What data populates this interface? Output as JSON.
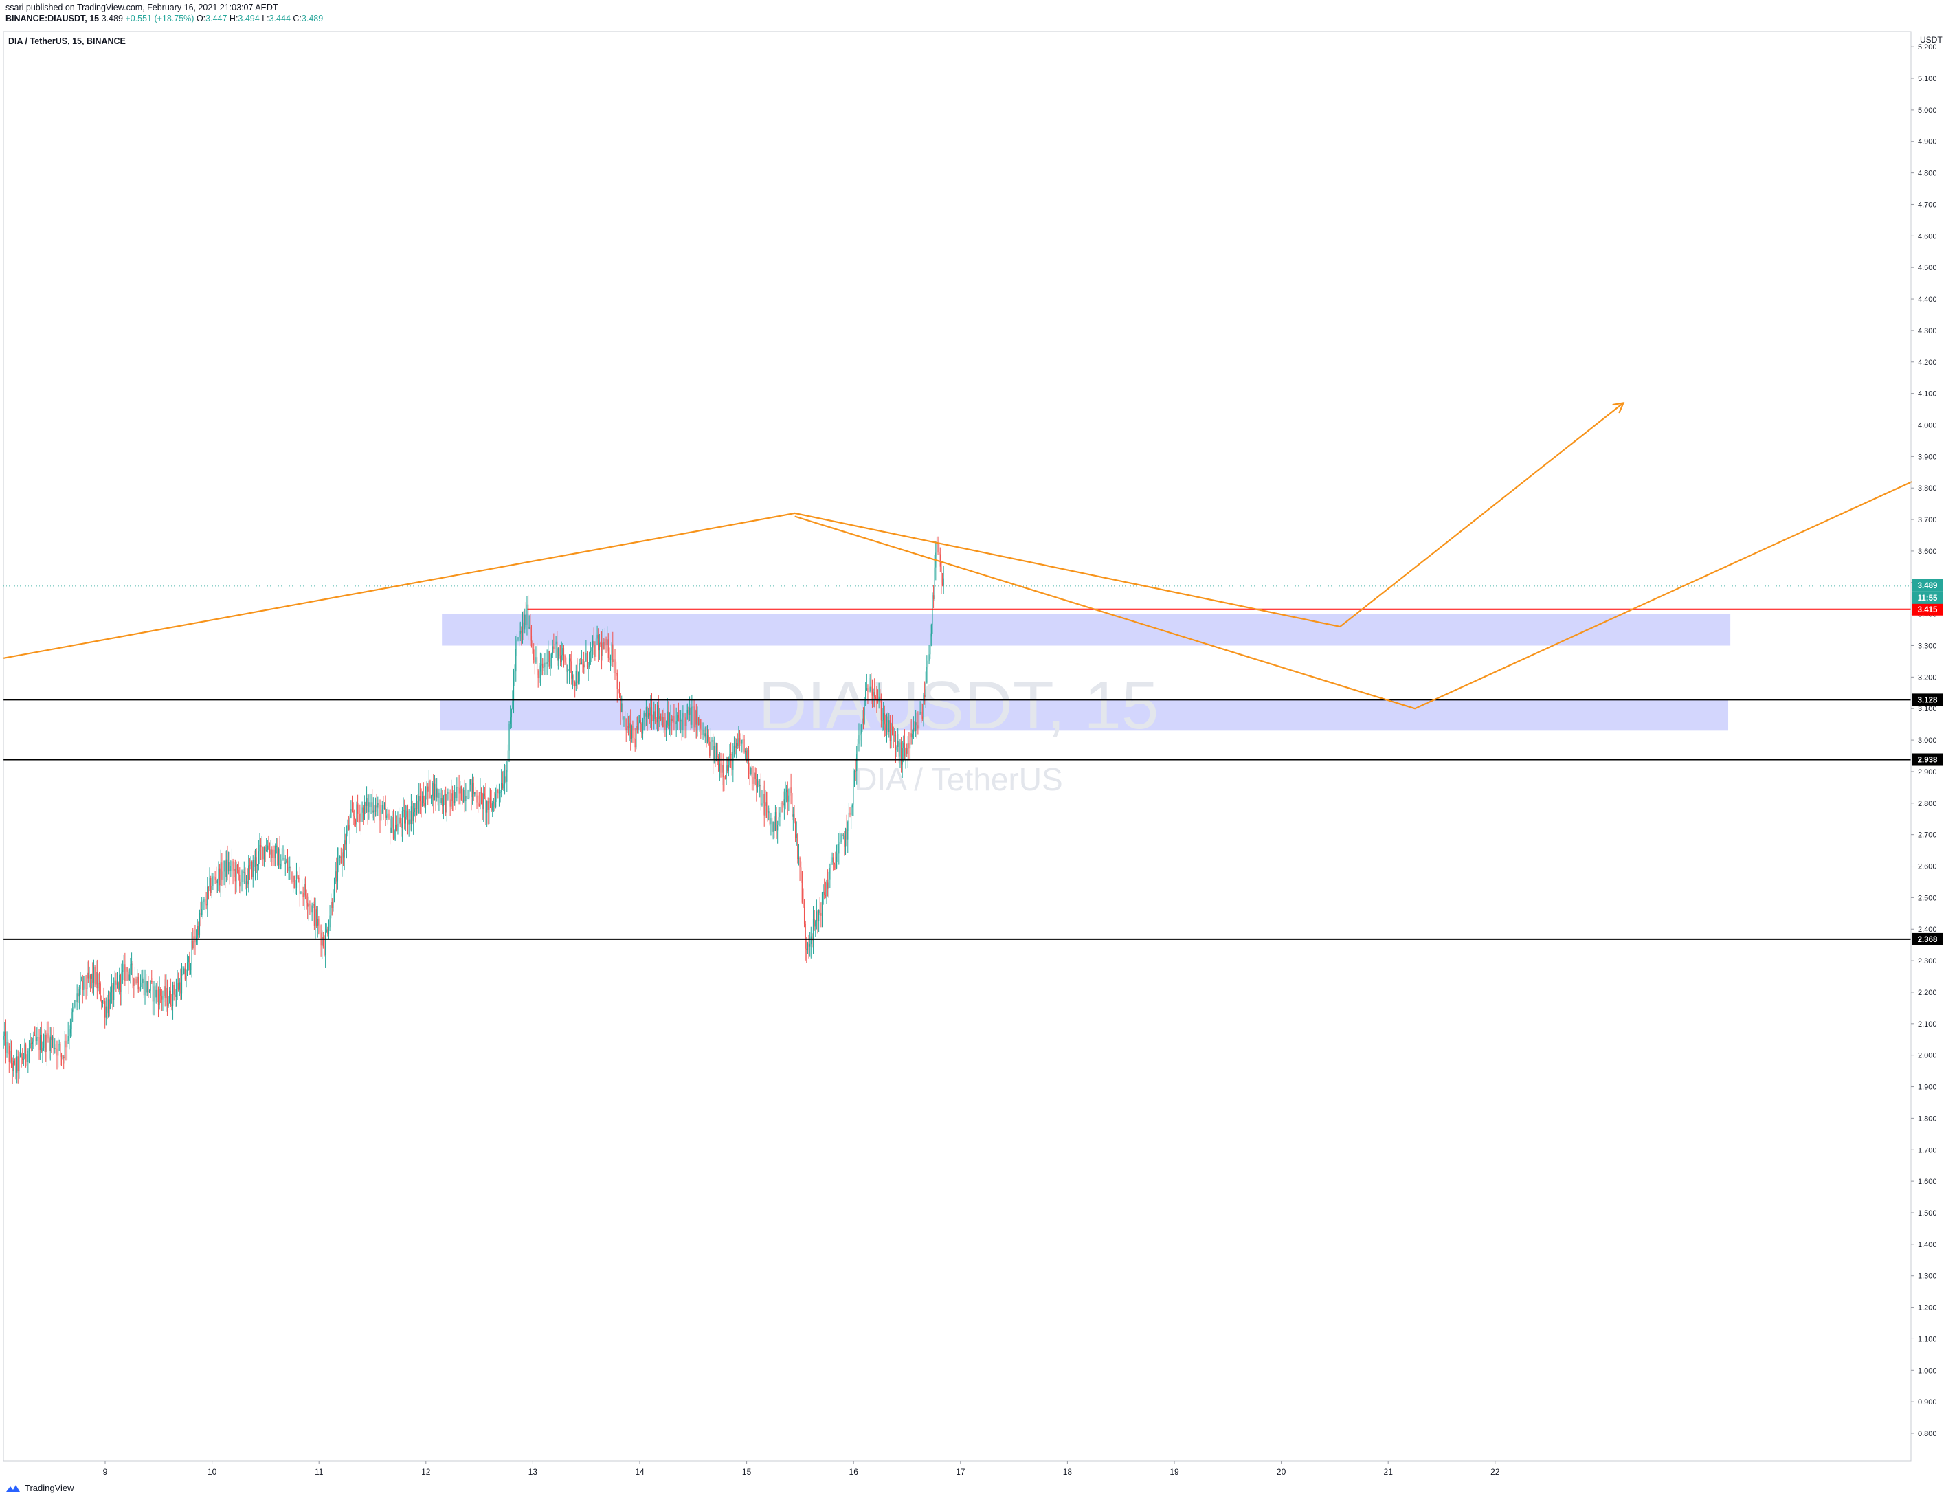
{
  "header": {
    "published": "ssari published on TradingView.com, February 16, 2021 21:03:07 AEDT",
    "symbol": "BINANCE:DIAUSDT, 15",
    "last": "3.489",
    "change": "+0.551 (+18.75%)",
    "o_label": "O:",
    "o_val": "3.447",
    "h_label": "H:",
    "h_val": "3.494",
    "l_label": "L:",
    "l_val": "3.444",
    "c_label": "C:",
    "c_val": "3.489"
  },
  "chart_title": "DIA / TetherUS, 15, BINANCE",
  "currency": "USDT",
  "watermark": {
    "big": "DIAUSDT, 15",
    "small": "DIA / TetherUS"
  },
  "footer": {
    "brand": "TradingView"
  },
  "colors": {
    "up": "#26a69a",
    "down": "#ef5350",
    "drawing": "#f7931a",
    "zone": "#d1d4fd",
    "support": "#000000",
    "resistance": "#ff0000"
  },
  "chart_data": {
    "type": "candlestick",
    "ylim": [
      0.75,
      5.2
    ],
    "y_ticks": [
      "0.800",
      "0.900",
      "1.000",
      "1.100",
      "1.200",
      "1.300",
      "1.400",
      "1.500",
      "1.600",
      "1.700",
      "1.800",
      "1.900",
      "2.000",
      "2.100",
      "2.200",
      "2.300",
      "2.400",
      "2.500",
      "2.600",
      "2.700",
      "2.800",
      "2.900",
      "3.000",
      "3.100",
      "3.200",
      "3.300",
      "3.400",
      "3.500",
      "3.600",
      "3.700",
      "3.800",
      "3.900",
      "4.000",
      "4.100",
      "4.200",
      "4.300",
      "4.400",
      "4.500",
      "4.600",
      "4.700",
      "4.800",
      "4.900",
      "5.000",
      "5.100",
      "5.200"
    ],
    "x_ticks": [
      {
        "label": "9",
        "day": 9
      },
      {
        "label": "10",
        "day": 10
      },
      {
        "label": "11",
        "day": 11
      },
      {
        "label": "12",
        "day": 12
      },
      {
        "label": "13",
        "day": 13
      },
      {
        "label": "14",
        "day": 14
      },
      {
        "label": "15",
        "day": 15
      },
      {
        "label": "16",
        "day": 16
      },
      {
        "label": "17",
        "day": 17
      },
      {
        "label": "18",
        "day": 18
      },
      {
        "label": "19",
        "day": 19
      },
      {
        "label": "20",
        "day": 20
      },
      {
        "label": "21",
        "day": 21
      },
      {
        "label": "22",
        "day": 22
      }
    ],
    "xlim_day": [
      8.05,
      25.9
    ],
    "price_path": [
      [
        8.05,
        2.05
      ],
      [
        8.15,
        1.95
      ],
      [
        8.3,
        2.03
      ],
      [
        8.5,
        2.05
      ],
      [
        8.6,
        2.0
      ],
      [
        8.75,
        2.2
      ],
      [
        8.9,
        2.25
      ],
      [
        9.0,
        2.15
      ],
      [
        9.2,
        2.27
      ],
      [
        9.45,
        2.2
      ],
      [
        9.6,
        2.18
      ],
      [
        9.75,
        2.25
      ],
      [
        9.9,
        2.45
      ],
      [
        10.0,
        2.55
      ],
      [
        10.15,
        2.6
      ],
      [
        10.3,
        2.55
      ],
      [
        10.5,
        2.67
      ],
      [
        10.7,
        2.6
      ],
      [
        10.9,
        2.5
      ],
      [
        11.05,
        2.35
      ],
      [
        11.15,
        2.55
      ],
      [
        11.3,
        2.75
      ],
      [
        11.5,
        2.8
      ],
      [
        11.7,
        2.72
      ],
      [
        11.9,
        2.78
      ],
      [
        12.05,
        2.85
      ],
      [
        12.2,
        2.8
      ],
      [
        12.4,
        2.85
      ],
      [
        12.6,
        2.78
      ],
      [
        12.75,
        2.9
      ],
      [
        12.85,
        3.3
      ],
      [
        12.95,
        3.4
      ],
      [
        13.05,
        3.2
      ],
      [
        13.2,
        3.3
      ],
      [
        13.4,
        3.2
      ],
      [
        13.6,
        3.3
      ],
      [
        13.75,
        3.28
      ],
      [
        13.85,
        3.05
      ],
      [
        13.95,
        3.0
      ],
      [
        14.1,
        3.1
      ],
      [
        14.3,
        3.05
      ],
      [
        14.5,
        3.08
      ],
      [
        14.65,
        2.98
      ],
      [
        14.8,
        2.9
      ],
      [
        14.95,
        3.0
      ],
      [
        15.1,
        2.85
      ],
      [
        15.25,
        2.72
      ],
      [
        15.4,
        2.85
      ],
      [
        15.5,
        2.6
      ],
      [
        15.55,
        2.35
      ],
      [
        15.65,
        2.42
      ],
      [
        15.8,
        2.6
      ],
      [
        15.95,
        2.72
      ],
      [
        16.05,
        3.0
      ],
      [
        16.15,
        3.2
      ],
      [
        16.3,
        3.05
      ],
      [
        16.45,
        2.95
      ],
      [
        16.55,
        3.0
      ],
      [
        16.65,
        3.1
      ],
      [
        16.72,
        3.35
      ],
      [
        16.78,
        3.62
      ],
      [
        16.82,
        3.5
      ],
      [
        16.85,
        3.489
      ]
    ],
    "zones": [
      {
        "day_from": 12.15,
        "day_to": 24.2,
        "price_from": 3.3,
        "price_to": 3.4
      },
      {
        "day_from": 12.13,
        "day_to": 24.18,
        "price_from": 3.03,
        "price_to": 3.13
      }
    ],
    "levels": [
      {
        "price": 3.128,
        "label": "3.128",
        "color": "#000000",
        "from_day": 8.05
      },
      {
        "price": 2.938,
        "label": "2.938",
        "color": "#000000",
        "from_day": 8.05
      },
      {
        "price": 2.368,
        "label": "2.368",
        "color": "#000000",
        "from_day": 8.05
      },
      {
        "price": 3.415,
        "label": "3.415",
        "color": "#ff0000",
        "from_day": 12.95
      }
    ],
    "last_price": {
      "price": 3.489,
      "label": "3.489",
      "countdown": "11:55"
    },
    "drawings": [
      {
        "points": [
          [
            8.05,
            3.26
          ],
          [
            15.45,
            3.72
          ],
          [
            20.55,
            3.36
          ],
          [
            23.2,
            4.07
          ]
        ],
        "arrow": true
      },
      {
        "points": [
          [
            15.45,
            3.71
          ],
          [
            21.25,
            3.1
          ],
          [
            25.9,
            3.82
          ]
        ],
        "arrow": false
      }
    ]
  }
}
